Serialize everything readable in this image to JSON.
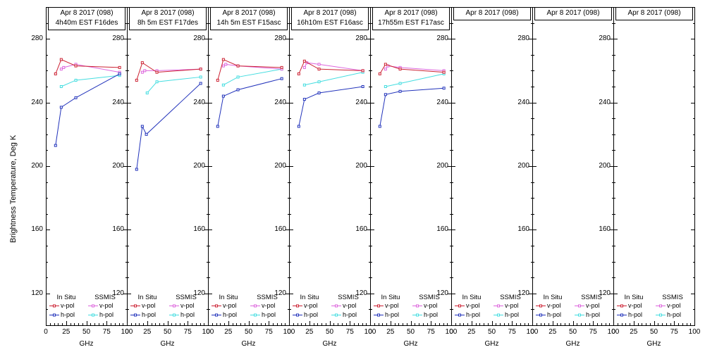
{
  "chart_data": {
    "type": "line",
    "title": "",
    "xlabel": "GHz",
    "ylabel": "Brightness Temperature, Deg K",
    "xlim": [
      0,
      100
    ],
    "xticks": [
      0,
      25,
      50,
      75,
      100
    ],
    "ylim": [
      100,
      300
    ],
    "yticks": [
      120,
      160,
      200,
      240,
      280
    ],
    "grid": false,
    "legend": {
      "position": "bottom-inside-each-panel",
      "columns": [
        "In Situ",
        "SSMIS"
      ],
      "rows": [
        "v-pol",
        "h-pol"
      ],
      "entries": [
        {
          "column": "In Situ",
          "row": "v-pol",
          "series": "in_situ_v"
        },
        {
          "column": "In Situ",
          "row": "h-pol",
          "series": "in_situ_h"
        },
        {
          "column": "SSMIS",
          "row": "v-pol",
          "series": "ssmis_v"
        },
        {
          "column": "SSMIS",
          "row": "h-pol",
          "series": "ssmis_h"
        }
      ]
    },
    "colors": {
      "in_situ_v": "#cc2233",
      "in_situ_h": "#2233bb",
      "ssmis_v": "#dd66dd",
      "ssmis_h": "#44dde0",
      "axis": "#000000"
    },
    "panels": [
      {
        "title_line1": "Apr 8 2017 (098)",
        "title_line2": "4h40m EST F16des",
        "series": [
          {
            "name": "ssmis_h",
            "x": [
              19,
              37,
              91
            ],
            "y": [
              250,
              254,
              257
            ]
          },
          {
            "name": "ssmis_v",
            "x": [
              19,
              22,
              37,
              91
            ],
            "y": [
              261,
              262,
              264,
              259
            ]
          },
          {
            "name": "in_situ_h",
            "x": [
              12,
              19,
              37,
              91
            ],
            "y": [
              213,
              237,
              243,
              258
            ]
          },
          {
            "name": "in_situ_v",
            "x": [
              12,
              19,
              37,
              91
            ],
            "y": [
              258,
              267,
              263,
              262
            ]
          }
        ]
      },
      {
        "title_line1": "Apr 8 2017 (098)",
        "title_line2": "8h 5m EST F17des",
        "series": [
          {
            "name": "ssmis_h",
            "x": [
              25,
              37,
              91
            ],
            "y": [
              246,
              253,
              256
            ]
          },
          {
            "name": "ssmis_v",
            "x": [
              19,
              22,
              37,
              91
            ],
            "y": [
              259,
              260,
              260,
              261
            ]
          },
          {
            "name": "in_situ_h",
            "x": [
              12,
              19,
              24,
              91
            ],
            "y": [
              198,
              225,
              220,
              252
            ]
          },
          {
            "name": "in_situ_v",
            "x": [
              12,
              19,
              37,
              91
            ],
            "y": [
              254,
              265,
              259,
              261
            ]
          }
        ]
      },
      {
        "title_line1": "Apr 8 2017 (098)",
        "title_line2": "14h 5m EST F15asc",
        "series": [
          {
            "name": "ssmis_h",
            "x": [
              19,
              37,
              91
            ],
            "y": [
              251,
              256,
              261
            ]
          },
          {
            "name": "ssmis_v",
            "x": [
              19,
              22,
              37,
              91
            ],
            "y": [
              263,
              264,
              263,
              261
            ]
          },
          {
            "name": "in_situ_h",
            "x": [
              12,
              19,
              37,
              91
            ],
            "y": [
              225,
              244,
              248,
              255
            ]
          },
          {
            "name": "in_situ_v",
            "x": [
              12,
              19,
              37,
              91
            ],
            "y": [
              254,
              267,
              263,
              262
            ]
          }
        ]
      },
      {
        "title_line1": "Apr 8 2017 (098)",
        "title_line2": "16h10m EST F16asc",
        "series": [
          {
            "name": "ssmis_h",
            "x": [
              19,
              37,
              91
            ],
            "y": [
              251,
              253,
              259
            ]
          },
          {
            "name": "ssmis_v",
            "x": [
              19,
              22,
              37,
              91
            ],
            "y": [
              262,
              265,
              264,
              260
            ]
          },
          {
            "name": "in_situ_h",
            "x": [
              12,
              19,
              37,
              91
            ],
            "y": [
              225,
              242,
              246,
              250
            ]
          },
          {
            "name": "in_situ_v",
            "x": [
              12,
              19,
              37,
              91
            ],
            "y": [
              258,
              266,
              261,
              260
            ]
          }
        ]
      },
      {
        "title_line1": "Apr 8 2017 (098)",
        "title_line2": "17h55m EST F17asc",
        "series": [
          {
            "name": "ssmis_h",
            "x": [
              19,
              37,
              91
            ],
            "y": [
              250,
              252,
              258
            ]
          },
          {
            "name": "ssmis_v",
            "x": [
              19,
              22,
              37,
              91
            ],
            "y": [
              261,
              263,
              262,
              260
            ]
          },
          {
            "name": "in_situ_h",
            "x": [
              12,
              19,
              37,
              91
            ],
            "y": [
              225,
              245,
              247,
              249
            ]
          },
          {
            "name": "in_situ_v",
            "x": [
              12,
              19,
              37,
              91
            ],
            "y": [
              258,
              264,
              261,
              259
            ]
          }
        ]
      },
      {
        "title_line1": "Apr 8 2017 (098)",
        "title_line2": "",
        "series": []
      },
      {
        "title_line1": "Apr 8 2017 (098)",
        "title_line2": "",
        "series": []
      },
      {
        "title_line1": "Apr 8 2017 (098)",
        "title_line2": "",
        "series": []
      }
    ]
  }
}
